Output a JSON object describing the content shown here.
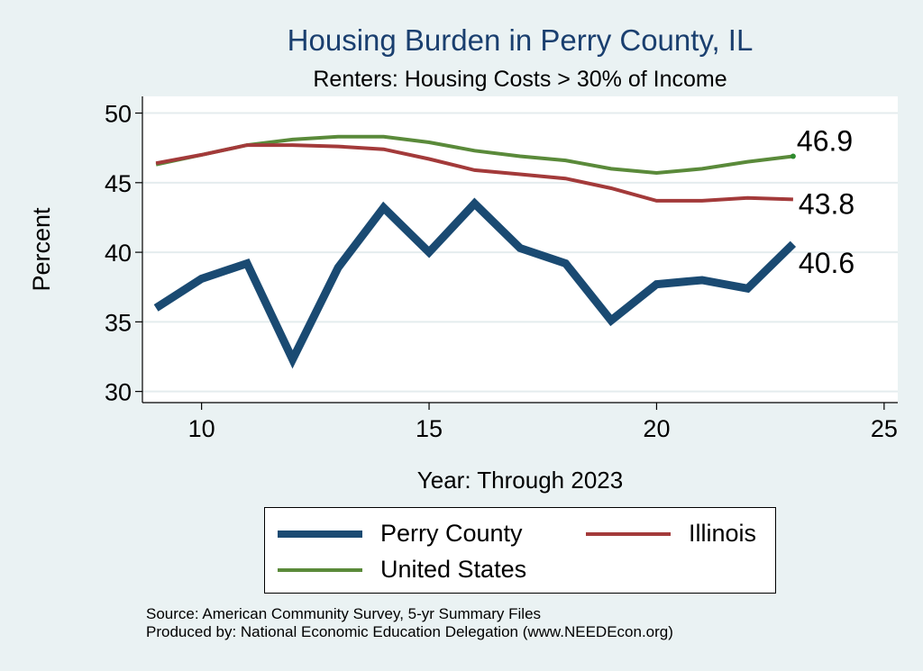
{
  "chart_data": {
    "type": "line",
    "title": "Housing Burden in Perry County, IL",
    "subtitle": "Renters: Housing Costs > 30% of Income",
    "xlabel": "Year: Through 2023",
    "ylabel": "Percent",
    "xlim": [
      8.7,
      25.3
    ],
    "ylim": [
      29.2,
      51.2
    ],
    "xticks": [
      10,
      15,
      20,
      25
    ],
    "yticks": [
      30,
      35,
      40,
      45,
      50
    ],
    "grid": true,
    "legend_position": "bottom",
    "x": [
      9,
      10,
      11,
      12,
      13,
      14,
      15,
      16,
      17,
      18,
      19,
      20,
      21,
      22,
      23
    ],
    "series": [
      {
        "name": "Perry County",
        "color": "#1a4a72",
        "values": [
          36.0,
          38.1,
          39.2,
          32.3,
          38.9,
          43.2,
          40.0,
          43.5,
          40.3,
          39.2,
          35.1,
          37.7,
          38.0,
          37.4,
          40.6
        ],
        "end_label": "40.6"
      },
      {
        "name": "Illinois",
        "color": "#a33a3a",
        "values": [
          46.4,
          47.0,
          47.7,
          47.7,
          47.6,
          47.4,
          46.7,
          45.9,
          45.6,
          45.3,
          44.6,
          43.7,
          43.7,
          43.9,
          43.8
        ],
        "end_label": "43.8"
      },
      {
        "name": "United States",
        "color": "#5a8a3a",
        "values": [
          46.3,
          47.0,
          47.7,
          48.1,
          48.3,
          48.3,
          47.9,
          47.3,
          46.9,
          46.6,
          46.0,
          45.7,
          46.0,
          46.5,
          46.9
        ],
        "end_label": "46.9"
      }
    ]
  },
  "source": {
    "line1": "Source: American Community Survey, 5-yr Summary Files",
    "line2": "Produced by: National Economic Education Delegation (www.NEEDEcon.org)"
  }
}
